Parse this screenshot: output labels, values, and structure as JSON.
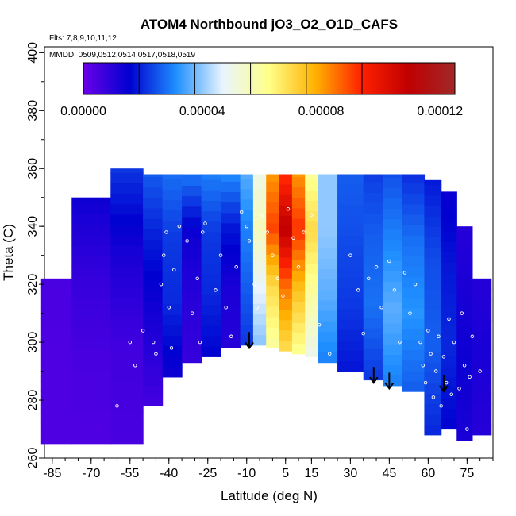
{
  "chart_data": {
    "type": "heatmap",
    "title": "ATOM4 Northbound jO3_O2_O1D_CAFS",
    "flights_note": "Flts: 7,8,9,10,11,12",
    "dates_note": "MMDD: 0509,0512,0514,0517,0518,0519",
    "xlabel": "Latitude (deg N)",
    "ylabel": "Theta (C)",
    "xlim": [
      -88,
      85
    ],
    "ylim": [
      260,
      402
    ],
    "xticks": [
      -85,
      -70,
      -55,
      -40,
      -25,
      -10,
      5,
      15,
      30,
      45,
      60,
      75
    ],
    "xtick_labels": [
      "-85",
      "-70",
      "-55",
      "-40",
      "-25",
      "-10",
      "5",
      "15",
      "30",
      "45",
      "60",
      "75"
    ],
    "yticks": [
      260,
      280,
      300,
      320,
      340,
      360,
      380,
      400
    ],
    "ytick_labels": [
      "260",
      "280",
      "300",
      "320",
      "340",
      "360",
      "380",
      "400"
    ],
    "colorbar": {
      "min": 0.0,
      "max": 0.000125,
      "ticks": [
        0.0,
        4e-05,
        8e-05,
        0.00012
      ],
      "tick_labels": [
        "0.00000",
        "0.00004",
        "0.00008",
        "0.00012"
      ],
      "stops": [
        "#6a00e8",
        "#0000d0",
        "#1f8fff",
        "#e8f4ff",
        "#ffff88",
        "#ffb000",
        "#ff2000",
        "#c00000",
        "#a02828"
      ]
    },
    "field_columns": [
      {
        "lat": -85,
        "bottom": 265,
        "top": 322,
        "values": [
          4e-06,
          4e-06,
          5e-06
        ]
      },
      {
        "lat": -70,
        "bottom": 265,
        "top": 350,
        "values": [
          4e-06,
          5e-06,
          8e-06,
          1.4e-05
        ]
      },
      {
        "lat": -55,
        "bottom": 265,
        "top": 360,
        "values": [
          5e-06,
          6e-06,
          1.2e-05,
          2.2e-05
        ]
      },
      {
        "lat": -45,
        "bottom": 278,
        "top": 358,
        "values": [
          6e-06,
          1.2e-05,
          1.8e-05,
          2.6e-05
        ]
      },
      {
        "lat": -40,
        "bottom": 288,
        "top": 358,
        "values": [
          1.4e-05,
          2e-05,
          2.2e-05,
          2.8e-05
        ]
      },
      {
        "lat": -30,
        "bottom": 293,
        "top": 358,
        "values": [
          8e-06,
          1e-05,
          1.4e-05,
          3e-05
        ]
      },
      {
        "lat": -25,
        "bottom": 295,
        "top": 358,
        "values": [
          1.6e-05,
          2e-05,
          2.2e-05,
          3e-05
        ]
      },
      {
        "lat": -15,
        "bottom": 298,
        "top": 358,
        "values": [
          1e-05,
          1.2e-05,
          1.8e-05,
          3.2e-05
        ]
      },
      {
        "lat": -10,
        "bottom": 299,
        "top": 358,
        "values": [
          2.2e-05,
          2.6e-05,
          3e-05,
          3.6e-05
        ]
      },
      {
        "lat": -5,
        "bottom": 299,
        "top": 358,
        "values": [
          4e-05,
          4.8e-05,
          5.6e-05,
          5e-05
        ]
      },
      {
        "lat": 0,
        "bottom": 298,
        "top": 358,
        "values": [
          6e-05,
          7e-05,
          9e-05,
          8e-05
        ]
      },
      {
        "lat": 5,
        "bottom": 297,
        "top": 358,
        "values": [
          7e-05,
          8.5e-05,
          0.00011,
          9e-05
        ]
      },
      {
        "lat": 10,
        "bottom": 296,
        "top": 358,
        "values": [
          6.2e-05,
          7.5e-05,
          9.2e-05,
          8e-05
        ]
      },
      {
        "lat": 15,
        "bottom": 295,
        "top": 358,
        "values": [
          5e-05,
          6e-05,
          7e-05,
          6e-05
        ]
      },
      {
        "lat": 20,
        "bottom": 293,
        "top": 358,
        "values": [
          3e-05,
          3.6e-05,
          4e-05,
          4e-05
        ]
      },
      {
        "lat": 30,
        "bottom": 290,
        "top": 358,
        "values": [
          1.8e-05,
          2.2e-05,
          2.4e-05,
          2.6e-05
        ]
      },
      {
        "lat": 40,
        "bottom": 287,
        "top": 358,
        "values": [
          2.2e-05,
          2.8e-05,
          2.6e-05,
          2.2e-05
        ]
      },
      {
        "lat": 45,
        "bottom": 285,
        "top": 358,
        "values": [
          3e-05,
          3.6e-05,
          3e-05,
          2.4e-05
        ]
      },
      {
        "lat": 55,
        "bottom": 283,
        "top": 358,
        "values": [
          2.6e-05,
          3.2e-05,
          2.8e-05,
          2e-05
        ]
      },
      {
        "lat": 62,
        "bottom": 268,
        "top": 356,
        "values": [
          2e-05,
          2.6e-05,
          2.4e-05,
          1.8e-05
        ]
      },
      {
        "lat": 68,
        "bottom": 270,
        "top": 352,
        "values": [
          1.6e-05,
          2e-05,
          1.8e-05,
          1.4e-05
        ]
      },
      {
        "lat": 74,
        "bottom": 266,
        "top": 340,
        "values": [
          1.2e-05,
          1.4e-05,
          1.2e-05,
          1e-05
        ]
      },
      {
        "lat": 80,
        "bottom": 268,
        "top": 322,
        "values": [
          1e-05,
          1.2e-05,
          1e-05
        ]
      }
    ],
    "tropopause_arrows": [
      {
        "lat": -9,
        "theta": 298
      },
      {
        "lat": 39,
        "theta": 286
      },
      {
        "lat": 45,
        "theta": 284
      },
      {
        "lat": 66,
        "theta": 283
      }
    ],
    "observation_points": [
      [
        -60,
        278
      ],
      [
        -55,
        300
      ],
      [
        -53,
        292
      ],
      [
        -50,
        304
      ],
      [
        -46,
        300
      ],
      [
        -45,
        296
      ],
      [
        -43,
        320
      ],
      [
        -42,
        330
      ],
      [
        -41,
        338
      ],
      [
        -40,
        312
      ],
      [
        -39,
        298
      ],
      [
        -38,
        325
      ],
      [
        -36,
        340
      ],
      [
        -33,
        335
      ],
      [
        -31,
        310
      ],
      [
        -29,
        322
      ],
      [
        -28,
        300
      ],
      [
        -27,
        338
      ],
      [
        -26,
        341
      ],
      [
        -22,
        318
      ],
      [
        -20,
        330
      ],
      [
        -18,
        312
      ],
      [
        -16,
        302
      ],
      [
        -14,
        326
      ],
      [
        -12,
        345
      ],
      [
        -10,
        340
      ],
      [
        -9,
        335
      ],
      [
        -7,
        320
      ],
      [
        -6,
        312
      ],
      [
        -4,
        344
      ],
      [
        -2,
        338
      ],
      [
        0,
        330
      ],
      [
        2,
        322
      ],
      [
        4,
        316
      ],
      [
        6,
        346
      ],
      [
        8,
        336
      ],
      [
        10,
        326
      ],
      [
        12,
        338
      ],
      [
        15,
        344
      ],
      [
        18,
        306
      ],
      [
        22,
        296
      ],
      [
        30,
        330
      ],
      [
        33,
        318
      ],
      [
        35,
        303
      ],
      [
        37,
        322
      ],
      [
        40,
        326
      ],
      [
        42,
        312
      ],
      [
        45,
        328
      ],
      [
        47,
        318
      ],
      [
        49,
        300
      ],
      [
        51,
        324
      ],
      [
        53,
        310
      ],
      [
        55,
        320
      ],
      [
        57,
        300
      ],
      [
        58,
        292
      ],
      [
        59,
        286
      ],
      [
        60,
        304
      ],
      [
        61,
        296
      ],
      [
        62,
        281
      ],
      [
        63,
        290
      ],
      [
        64,
        302
      ],
      [
        65,
        278
      ],
      [
        66,
        295
      ],
      [
        67,
        286
      ],
      [
        68,
        308
      ],
      [
        69,
        282
      ],
      [
        70,
        300
      ],
      [
        72,
        284
      ],
      [
        73,
        310
      ],
      [
        74,
        292
      ],
      [
        75,
        270
      ],
      [
        76,
        288
      ],
      [
        77,
        302
      ],
      [
        78,
        352
      ],
      [
        79,
        344
      ],
      [
        72,
        355
      ],
      [
        70,
        356
      ],
      [
        80,
        290
      ]
    ]
  }
}
